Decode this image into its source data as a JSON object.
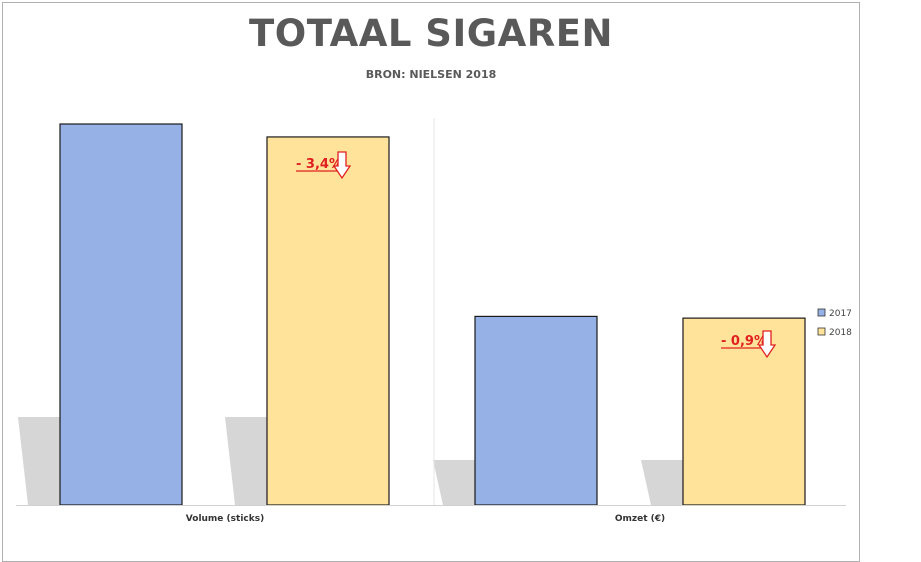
{
  "chart_data": {
    "type": "bar",
    "title": "TOTAAL SIGAREN",
    "subtitle": "BRON: NIELSEN 2018",
    "categories": [
      "Volume (sticks)",
      "Omzet (€)"
    ],
    "series": [
      {
        "name": "2017",
        "color": "#95b1e6",
        "values": [
          100,
          49.5
        ]
      },
      {
        "name": "2018",
        "color": "#ffe39a",
        "values": [
          96.6,
          49.05
        ]
      }
    ],
    "ylim": [
      0,
      100
    ],
    "grid": false,
    "legend": "right",
    "annotations": [
      {
        "category": "Volume (sticks)",
        "series": "2018",
        "text": "- 3,4%",
        "icon": "down-arrow-icon"
      },
      {
        "category": "Omzet (€)",
        "series": "2018",
        "text": "- 0,9%",
        "icon": "down-arrow-icon"
      }
    ]
  }
}
